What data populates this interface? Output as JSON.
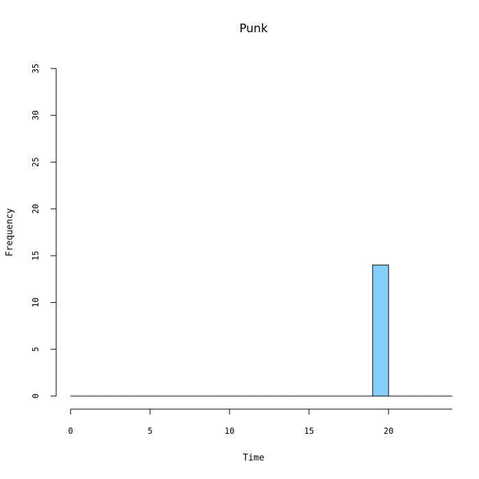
{
  "chart_data": {
    "type": "bar",
    "title": "Punk",
    "xlabel": "Time",
    "ylabel": "Frequency",
    "xlim": [
      0,
      24
    ],
    "ylim": [
      0,
      35
    ],
    "x_ticks": [
      "0",
      "5",
      "10",
      "15",
      "20"
    ],
    "y_ticks": [
      "0",
      "5",
      "10",
      "15",
      "20",
      "25",
      "30",
      "35"
    ],
    "bin_width": 1,
    "bins": [
      {
        "start": 0,
        "end": 1,
        "count": 0
      },
      {
        "start": 1,
        "end": 2,
        "count": 0
      },
      {
        "start": 2,
        "end": 3,
        "count": 0
      },
      {
        "start": 3,
        "end": 4,
        "count": 0
      },
      {
        "start": 4,
        "end": 5,
        "count": 0
      },
      {
        "start": 5,
        "end": 6,
        "count": 0
      },
      {
        "start": 6,
        "end": 7,
        "count": 0
      },
      {
        "start": 7,
        "end": 8,
        "count": 0
      },
      {
        "start": 8,
        "end": 9,
        "count": 0
      },
      {
        "start": 9,
        "end": 10,
        "count": 0
      },
      {
        "start": 10,
        "end": 11,
        "count": 0
      },
      {
        "start": 11,
        "end": 12,
        "count": 0
      },
      {
        "start": 12,
        "end": 13,
        "count": 0
      },
      {
        "start": 13,
        "end": 14,
        "count": 0
      },
      {
        "start": 14,
        "end": 15,
        "count": 0
      },
      {
        "start": 15,
        "end": 16,
        "count": 0
      },
      {
        "start": 16,
        "end": 17,
        "count": 0
      },
      {
        "start": 17,
        "end": 18,
        "count": 0
      },
      {
        "start": 18,
        "end": 19,
        "count": 0
      },
      {
        "start": 19,
        "end": 20,
        "count": 14
      },
      {
        "start": 20,
        "end": 21,
        "count": 0
      },
      {
        "start": 21,
        "end": 22,
        "count": 0
      },
      {
        "start": 22,
        "end": 23,
        "count": 0
      },
      {
        "start": 23,
        "end": 24,
        "count": 0
      }
    ],
    "bar_color": "#87CEFA",
    "grid": false
  }
}
